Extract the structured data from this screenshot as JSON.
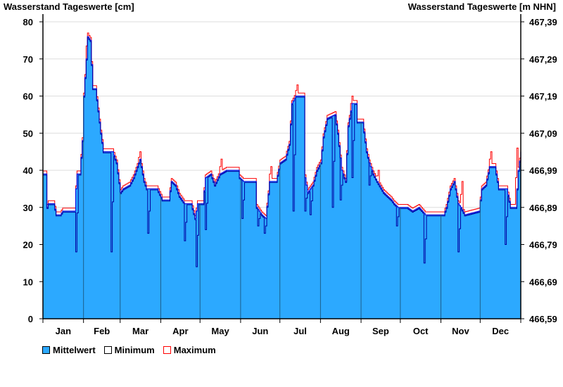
{
  "chart_data": {
    "type": "area",
    "title_left": "Wasserstand Tageswerte [cm]",
    "title_right": "Wasserstand Tageswerte [m NHN]",
    "ylim": [
      0,
      80
    ],
    "yticks": [
      0,
      10,
      20,
      30,
      40,
      50,
      60,
      70,
      80
    ],
    "yticks_right": [
      "466,59",
      "466,69",
      "466,79",
      "466,89",
      "466,99",
      "467,09",
      "467,19",
      "467,29",
      "467,39"
    ],
    "xlim_days": [
      0,
      365
    ],
    "months": [
      "Jan",
      "Feb",
      "Mar",
      "Apr",
      "May",
      "Jun",
      "Jul",
      "Aug",
      "Sep",
      "Oct",
      "Nov",
      "Dec"
    ],
    "month_start_days": [
      0,
      31,
      59,
      90,
      120,
      151,
      181,
      212,
      243,
      273,
      304,
      334,
      365
    ],
    "grid": true,
    "colors": {
      "mean": "#2ca9ff",
      "min": "#0000a0",
      "max": "#ff0000",
      "mean_edge": "#1010e0"
    },
    "legend": [
      "Mittelwert",
      "Minimum",
      "Maximum"
    ],
    "legend_position": "bottom-left",
    "mean_keypoints": [
      [
        0,
        39
      ],
      [
        2,
        39
      ],
      [
        3,
        30
      ],
      [
        4,
        31
      ],
      [
        8,
        31
      ],
      [
        10,
        28
      ],
      [
        13,
        28
      ],
      [
        15,
        29
      ],
      [
        24,
        29
      ],
      [
        25,
        35
      ],
      [
        26,
        39
      ],
      [
        28,
        39
      ],
      [
        30,
        48
      ],
      [
        31,
        60
      ],
      [
        33,
        70
      ],
      [
        34,
        76
      ],
      [
        36,
        75
      ],
      [
        38,
        62
      ],
      [
        40,
        62
      ],
      [
        42,
        56
      ],
      [
        44,
        50
      ],
      [
        46,
        45
      ],
      [
        53,
        45
      ],
      [
        56,
        42
      ],
      [
        59,
        34
      ],
      [
        61,
        35
      ],
      [
        66,
        36
      ],
      [
        69,
        38
      ],
      [
        74,
        43
      ],
      [
        77,
        37
      ],
      [
        79,
        35
      ],
      [
        87,
        35
      ],
      [
        91,
        32
      ],
      [
        96,
        32
      ],
      [
        98,
        37
      ],
      [
        101,
        36
      ],
      [
        104,
        33
      ],
      [
        108,
        31
      ],
      [
        113,
        31
      ],
      [
        116,
        27
      ],
      [
        118,
        31
      ],
      [
        122,
        31
      ],
      [
        124,
        38
      ],
      [
        128,
        39
      ],
      [
        131,
        36
      ],
      [
        135,
        39
      ],
      [
        140,
        40
      ],
      [
        149,
        40
      ],
      [
        150,
        38
      ],
      [
        153,
        37
      ],
      [
        162,
        37
      ],
      [
        163,
        30
      ],
      [
        167,
        28
      ],
      [
        170,
        27
      ],
      [
        173,
        37
      ],
      [
        178,
        37
      ],
      [
        181,
        42
      ],
      [
        185,
        43
      ],
      [
        188,
        47
      ],
      [
        190,
        58
      ],
      [
        193,
        60
      ],
      [
        199,
        60
      ],
      [
        200,
        38
      ],
      [
        202,
        34
      ],
      [
        206,
        36
      ],
      [
        209,
        40
      ],
      [
        212,
        42
      ],
      [
        214,
        49
      ],
      [
        217,
        54
      ],
      [
        223,
        55
      ],
      [
        225,
        50
      ],
      [
        228,
        40
      ],
      [
        231,
        37
      ],
      [
        233,
        52
      ],
      [
        236,
        58
      ],
      [
        239,
        58
      ],
      [
        240,
        53
      ],
      [
        244,
        53
      ],
      [
        247,
        45
      ],
      [
        249,
        42
      ],
      [
        252,
        39
      ],
      [
        255,
        37
      ],
      [
        260,
        34
      ],
      [
        266,
        32
      ],
      [
        268,
        31
      ],
      [
        271,
        30
      ],
      [
        278,
        30
      ],
      [
        282,
        29
      ],
      [
        287,
        30
      ],
      [
        292,
        28
      ],
      [
        306,
        28
      ],
      [
        308,
        30
      ],
      [
        311,
        35
      ],
      [
        314,
        37
      ],
      [
        317,
        31
      ],
      [
        319,
        30
      ],
      [
        322,
        28
      ],
      [
        333,
        29
      ],
      [
        335,
        35
      ],
      [
        338,
        36
      ],
      [
        341,
        41
      ],
      [
        345,
        41
      ],
      [
        348,
        35
      ],
      [
        354,
        35
      ],
      [
        357,
        30
      ],
      [
        361,
        30
      ],
      [
        363,
        40
      ],
      [
        365,
        45
      ]
    ],
    "min_dips": [
      [
        25,
        18
      ],
      [
        52,
        18
      ],
      [
        80,
        23
      ],
      [
        108,
        21
      ],
      [
        117,
        14
      ],
      [
        124,
        24
      ],
      [
        152,
        27
      ],
      [
        164,
        25
      ],
      [
        169,
        23
      ],
      [
        191,
        29
      ],
      [
        200,
        29
      ],
      [
        204,
        28
      ],
      [
        221,
        30
      ],
      [
        227,
        32
      ],
      [
        236,
        38
      ],
      [
        249,
        36
      ],
      [
        270,
        25
      ],
      [
        291,
        15
      ],
      [
        317,
        18
      ],
      [
        353,
        20
      ]
    ],
    "max_peaks": [
      [
        34,
        77
      ],
      [
        74,
        45
      ],
      [
        136,
        43
      ],
      [
        174,
        41
      ],
      [
        194,
        63
      ],
      [
        236,
        60
      ],
      [
        256,
        40
      ],
      [
        320,
        37
      ],
      [
        342,
        45
      ],
      [
        362,
        46
      ]
    ]
  }
}
